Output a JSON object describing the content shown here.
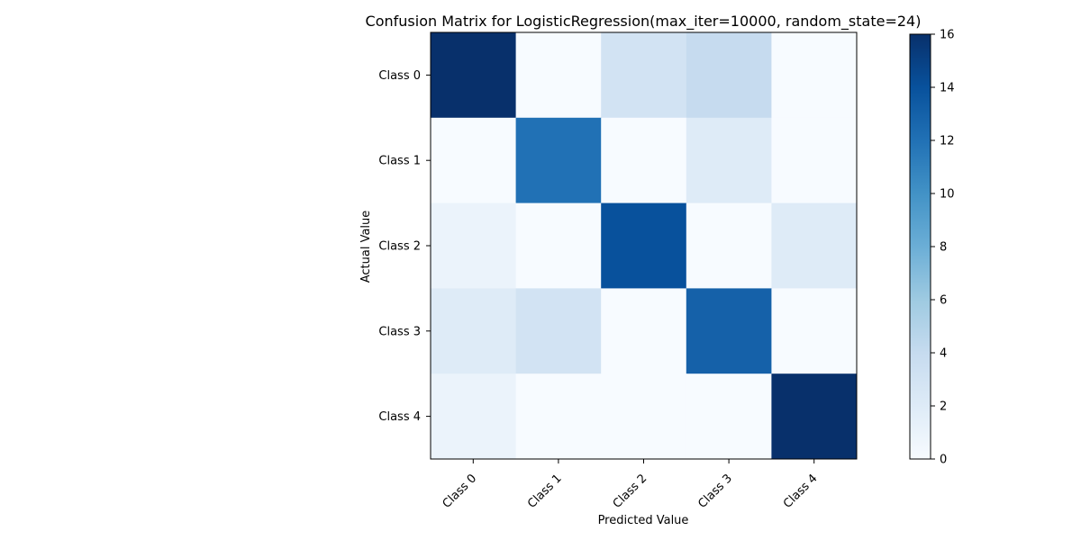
{
  "chart_data": {
    "type": "heatmap",
    "title": "Confusion Matrix for LogisticRegression(max_iter=10000, random_state=24)",
    "xlabel": "Predicted Value",
    "ylabel": "Actual Value",
    "x_categories": [
      "Class 0",
      "Class 1",
      "Class 2",
      "Class 3",
      "Class 4"
    ],
    "y_categories": [
      "Class 0",
      "Class 1",
      "Class 2",
      "Class 3",
      "Class 4"
    ],
    "matrix": [
      [
        16,
        0,
        3,
        4,
        0
      ],
      [
        0,
        12,
        0,
        2,
        0
      ],
      [
        1,
        0,
        14,
        0,
        2
      ],
      [
        2,
        3,
        0,
        13,
        0
      ],
      [
        1,
        0,
        0,
        0,
        16
      ]
    ],
    "colormap": "Blues",
    "colorbar": {
      "range": [
        0,
        16
      ],
      "ticks": [
        "0",
        "2",
        "4",
        "6",
        "8",
        "10",
        "12",
        "14",
        "16"
      ]
    },
    "colors": {
      "low": "#f7fbff",
      "high": "#08306b"
    }
  }
}
